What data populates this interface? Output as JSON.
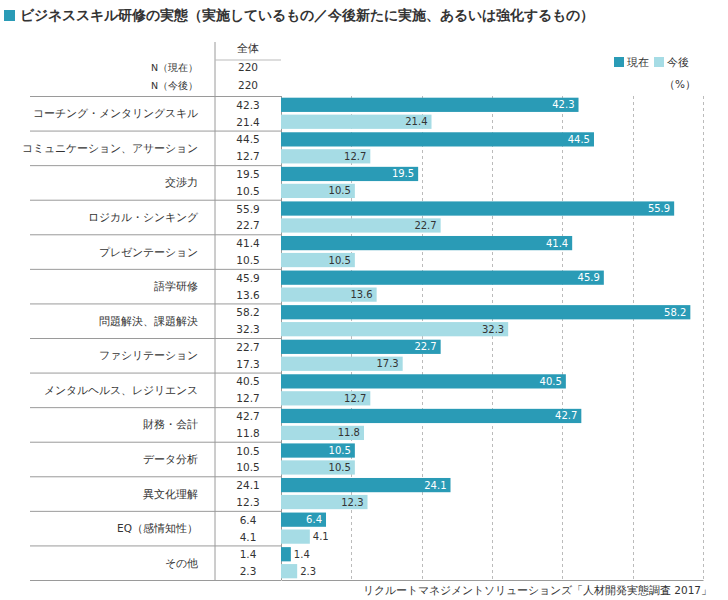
{
  "chart_data": {
    "type": "bar",
    "orientation": "horizontal",
    "title": "ビジネススキル研修の実態（実施しているもの／今後新たに実施、あるいは強化するもの）",
    "table_header": "全体",
    "sample_sizes": [
      {
        "label": "N（現在）",
        "value": 220
      },
      {
        "label": "N（今後）",
        "value": 220
      }
    ],
    "x_label": "（%）",
    "source": "リクルートマネジメントソリューションズ「人材開発実態調査 2017」",
    "categories": [
      "コーチング・メンタリングスキル",
      "コミュニケーション、アサーション",
      "交渉力",
      "ロジカル・シンキング",
      "プレゼンテーション",
      "語学研修",
      "問題解決、課題解決",
      "ファシリテーション",
      "メンタルヘルス、レジリエンス",
      "財務・会計",
      "データ分析",
      "異文化理解",
      "EQ（感情知性）",
      "その他"
    ],
    "series": [
      {
        "name": "現在",
        "color": "#2a9bb6",
        "values": [
          42.3,
          44.5,
          19.5,
          55.9,
          41.4,
          45.9,
          58.2,
          22.7,
          40.5,
          42.7,
          10.5,
          24.1,
          6.4,
          1.4
        ]
      },
      {
        "name": "今後",
        "color": "#a6dce5",
        "values": [
          21.4,
          12.7,
          10.5,
          22.7,
          10.5,
          13.6,
          32.3,
          17.3,
          12.7,
          11.8,
          10.5,
          12.3,
          4.1,
          2.3
        ]
      }
    ],
    "xlim": [
      0,
      60
    ],
    "xticks": [
      0,
      10,
      20,
      30,
      40,
      50,
      60
    ],
    "tick_labels": false,
    "grid": true,
    "data_labels": true,
    "legend": "top-right"
  }
}
